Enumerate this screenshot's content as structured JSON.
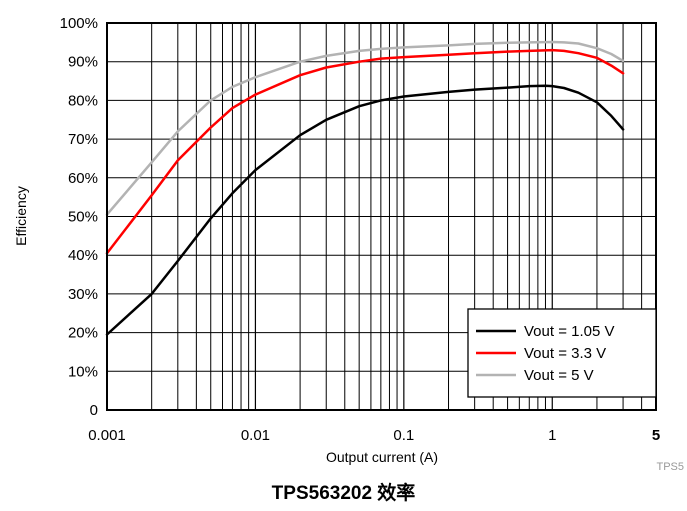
{
  "caption": "TPS563202 效率",
  "watermark": "TPS5",
  "chart_data": {
    "type": "line",
    "xlabel": "Output current (A)",
    "ylabel": "Efficiency",
    "xscale": "log",
    "xlim": [
      0.001,
      5
    ],
    "ylim": [
      0,
      100
    ],
    "xticks": [
      0.001,
      0.01,
      0.1,
      1,
      5
    ],
    "xtick_labels": [
      "0.001",
      "0.01",
      "0.1",
      "1",
      "5"
    ],
    "yticks": [
      0,
      10,
      20,
      30,
      40,
      50,
      60,
      70,
      80,
      90,
      100
    ],
    "ytick_labels": [
      "0",
      "10%",
      "20%",
      "30%",
      "40%",
      "50%",
      "60%",
      "70%",
      "80%",
      "90%",
      "100%"
    ],
    "grid": true,
    "legend_position": "bottom-right",
    "series": [
      {
        "name": "Vout = 1.05 V",
        "color": "#000000",
        "x": [
          0.001,
          0.002,
          0.003,
          0.005,
          0.007,
          0.01,
          0.02,
          0.03,
          0.05,
          0.07,
          0.1,
          0.2,
          0.3,
          0.5,
          0.7,
          0.9,
          1.0,
          1.2,
          1.5,
          2.0,
          2.5,
          3.0
        ],
        "y": [
          19.5,
          30,
          38.5,
          49.5,
          56,
          62,
          71,
          75,
          78.5,
          80,
          81,
          82.2,
          82.8,
          83.3,
          83.7,
          83.8,
          83.7,
          83.2,
          82,
          79.5,
          76,
          72.5
        ]
      },
      {
        "name": "Vout = 3.3 V",
        "color": "#ff0000",
        "x": [
          0.001,
          0.002,
          0.003,
          0.005,
          0.007,
          0.01,
          0.02,
          0.03,
          0.05,
          0.07,
          0.1,
          0.2,
          0.3,
          0.5,
          0.7,
          1.0,
          1.2,
          1.5,
          2.0,
          2.5,
          3.0
        ],
        "y": [
          40.5,
          55.5,
          64.5,
          73,
          78,
          81.5,
          86.5,
          88.5,
          90,
          90.8,
          91.2,
          91.8,
          92.2,
          92.6,
          92.8,
          93,
          92.8,
          92.2,
          91,
          89,
          87
        ]
      },
      {
        "name": "Vout = 5 V",
        "color": "#b3b3b3",
        "x": [
          0.001,
          0.002,
          0.003,
          0.005,
          0.007,
          0.01,
          0.02,
          0.03,
          0.05,
          0.07,
          0.1,
          0.2,
          0.3,
          0.5,
          0.7,
          1.0,
          1.2,
          1.5,
          2.0,
          2.5,
          3.0
        ],
        "y": [
          50.5,
          64,
          72,
          80,
          83.5,
          86,
          90,
          91.5,
          92.8,
          93.3,
          93.7,
          94.2,
          94.6,
          94.9,
          95,
          95.1,
          95,
          94.7,
          93.5,
          92,
          90.2
        ]
      }
    ]
  }
}
